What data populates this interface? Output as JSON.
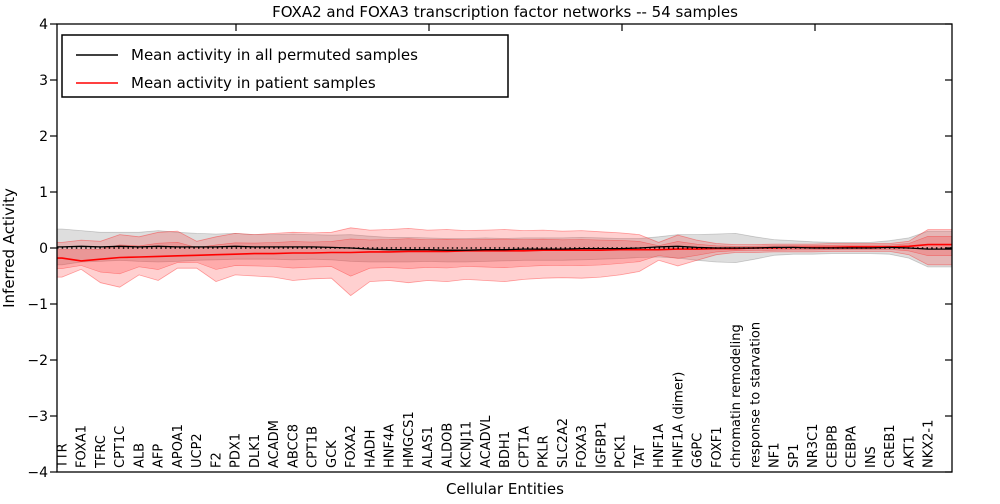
{
  "title": "FOXA2 and FOXA3 transcription factor networks -- 54 samples",
  "legend": {
    "permuted_label": "Mean activity in all permuted samples",
    "patient_label": "Mean activity in patient samples"
  },
  "axes": {
    "xlabel": "Cellular Entities",
    "ylabel": "Inferred Activity",
    "yticks": [
      "4",
      "3",
      "2",
      "1",
      "0",
      "−1",
      "−2",
      "−3",
      "−4"
    ],
    "ylim": [
      -4,
      4
    ]
  },
  "colors": {
    "permuted_line": "#000000",
    "patient_line": "#ff0000",
    "permuted_band_fill": "rgba(0,0,0,0.13)",
    "permuted_band_edge": "rgba(0,0,0,0.18)",
    "patient_band_fill": "rgba(255,40,40,0.22)",
    "patient_band_edge": "rgba(255,0,0,0.35)",
    "zero_line": "#000000",
    "frame": "#000000",
    "background": "#ffffff"
  },
  "chart_data": {
    "type": "line",
    "title": "FOXA2 and FOXA3 transcription factor networks -- 54 samples",
    "xlabel": "Cellular Entities",
    "ylabel": "Inferred Activity",
    "ylim": [
      -4,
      4
    ],
    "grid": false,
    "legend_position": "upper left",
    "categories": [
      "TTR",
      "FOXA1",
      "TFRC",
      "CPT1C",
      "ALB",
      "AFP",
      "APOA1",
      "UCP2",
      "F2",
      "PDX1",
      "DLK1",
      "ACADM",
      "ABCC8",
      "CPT1B",
      "GCK",
      "FOXA2",
      "HADH",
      "HNF4A",
      "HMGCS1",
      "ALAS1",
      "ALDOB",
      "KCNJ11",
      "ACADVL",
      "BDH1",
      "CPT1A",
      "PKLR",
      "SLC2A2",
      "FOXA3",
      "IGFBP1",
      "PCK1",
      "TAT",
      "HNF1A",
      "HNF1A (dimer)",
      "G6PC",
      "FOXF1",
      "chromatin remodeling",
      "response to starvation",
      "NF1",
      "SP1",
      "NR3C1",
      "CEBPB",
      "CEBPA",
      "INS",
      "CREB1",
      "AKT1",
      "NKX2-1"
    ],
    "series": [
      {
        "name": "Mean activity in all permuted samples",
        "style": "solid black line with shaded std band",
        "values": [
          0.02,
          0.03,
          0.02,
          0.03,
          0.02,
          0.03,
          0.02,
          0.02,
          0.02,
          0.03,
          0.02,
          0.02,
          0.02,
          0.02,
          0.01,
          0.0,
          -0.02,
          -0.03,
          -0.03,
          -0.03,
          -0.04,
          -0.04,
          -0.03,
          -0.03,
          -0.02,
          -0.02,
          -0.02,
          -0.01,
          -0.01,
          -0.01,
          0.0,
          0.02,
          0.03,
          0.01,
          0.0,
          0.0,
          0.0,
          0.01,
          0.01,
          0.0,
          0.0,
          0.0,
          0.0,
          0.01,
          0.0,
          -0.02
        ],
        "band_halfwidth": [
          0.32,
          0.28,
          0.26,
          0.25,
          0.26,
          0.28,
          0.26,
          0.24,
          0.23,
          0.23,
          0.22,
          0.22,
          0.23,
          0.22,
          0.22,
          0.24,
          0.23,
          0.22,
          0.22,
          0.21,
          0.21,
          0.21,
          0.21,
          0.2,
          0.2,
          0.2,
          0.2,
          0.2,
          0.19,
          0.18,
          0.17,
          0.18,
          0.21,
          0.23,
          0.25,
          0.26,
          0.2,
          0.14,
          0.12,
          0.11,
          0.1,
          0.1,
          0.1,
          0.12,
          0.18,
          0.32
        ]
      },
      {
        "name": "Mean activity in patient samples",
        "style": "solid red line with two-level shaded bands",
        "values": [
          -0.18,
          -0.23,
          -0.2,
          -0.17,
          -0.16,
          -0.15,
          -0.14,
          -0.13,
          -0.12,
          -0.11,
          -0.1,
          -0.1,
          -0.09,
          -0.09,
          -0.08,
          -0.08,
          -0.07,
          -0.07,
          -0.06,
          -0.06,
          -0.06,
          -0.05,
          -0.05,
          -0.05,
          -0.05,
          -0.04,
          -0.04,
          -0.04,
          -0.04,
          -0.03,
          -0.03,
          -0.03,
          -0.02,
          -0.02,
          -0.01,
          -0.01,
          0.0,
          0.0,
          0.01,
          0.01,
          0.01,
          0.02,
          0.02,
          0.02,
          0.03,
          0.06
        ],
        "band_upper": [
          0.1,
          0.14,
          0.12,
          0.24,
          0.2,
          0.28,
          0.3,
          0.12,
          0.2,
          0.26,
          0.24,
          0.26,
          0.28,
          0.27,
          0.28,
          0.36,
          0.32,
          0.33,
          0.35,
          0.32,
          0.33,
          0.31,
          0.32,
          0.33,
          0.31,
          0.32,
          0.3,
          0.31,
          0.29,
          0.27,
          0.24,
          0.1,
          0.23,
          0.14,
          0.08,
          0.06,
          0.06,
          0.07,
          0.07,
          0.07,
          0.08,
          0.08,
          0.08,
          0.08,
          0.12,
          0.33
        ],
        "band_lower": [
          -0.52,
          -0.38,
          -0.62,
          -0.7,
          -0.48,
          -0.58,
          -0.36,
          -0.36,
          -0.6,
          -0.48,
          -0.5,
          -0.52,
          -0.58,
          -0.55,
          -0.54,
          -0.85,
          -0.6,
          -0.58,
          -0.62,
          -0.58,
          -0.6,
          -0.56,
          -0.58,
          -0.6,
          -0.56,
          -0.54,
          -0.53,
          -0.54,
          -0.52,
          -0.48,
          -0.42,
          -0.22,
          -0.32,
          -0.22,
          -0.12,
          -0.08,
          -0.08,
          -0.07,
          -0.07,
          -0.07,
          -0.06,
          -0.06,
          -0.06,
          -0.06,
          -0.12,
          -0.3
        ],
        "inner_band_ratio": 0.55
      }
    ],
    "annotations": {
      "zero_reference_line": "dotted black line at y=0"
    }
  }
}
